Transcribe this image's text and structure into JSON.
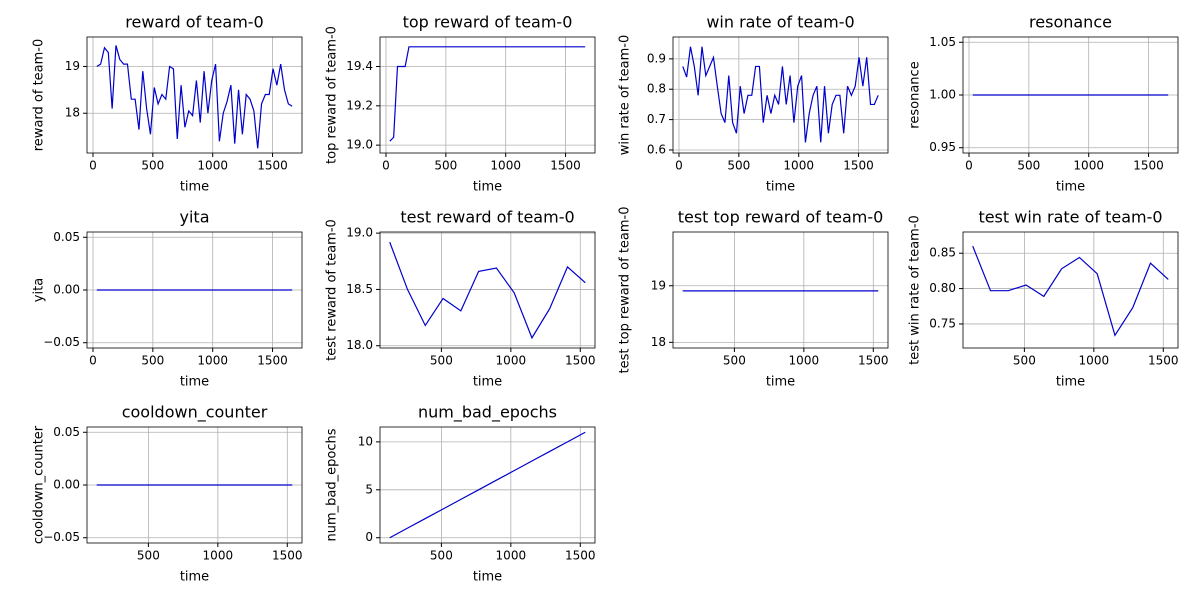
{
  "chart_data": [
    {
      "type": "line",
      "title": "reward of team-0",
      "xlabel": "time",
      "ylabel": "reward of team-0",
      "color": "#0000cc",
      "grid": true,
      "x": [
        32,
        64,
        96,
        128,
        160,
        192,
        224,
        256,
        288,
        320,
        352,
        384,
        416,
        448,
        480,
        512,
        544,
        576,
        608,
        640,
        672,
        704,
        736,
        768,
        800,
        832,
        864,
        896,
        928,
        960,
        992,
        1024,
        1056,
        1088,
        1120,
        1152,
        1184,
        1216,
        1248,
        1280,
        1312,
        1344,
        1376,
        1408,
        1440,
        1472,
        1504,
        1536,
        1568,
        1600,
        1632,
        1664
      ],
      "values": [
        19.0,
        19.05,
        19.4,
        19.3,
        18.1,
        19.45,
        19.15,
        19.05,
        19.05,
        18.3,
        18.3,
        17.65,
        18.9,
        18.1,
        17.55,
        18.55,
        18.2,
        18.4,
        18.3,
        19.0,
        18.95,
        17.45,
        18.6,
        17.7,
        18.05,
        17.95,
        18.7,
        17.8,
        18.9,
        18.0,
        18.7,
        19.05,
        17.4,
        18.0,
        18.25,
        18.6,
        17.35,
        18.5,
        17.55,
        18.4,
        18.3,
        18.05,
        17.25,
        18.2,
        18.4,
        18.4,
        18.95,
        18.6,
        19.05,
        18.5,
        18.2,
        18.15
      ],
      "xlim": [
        -50,
        1746
      ],
      "ylim": [
        17.15,
        19.63
      ],
      "xticks": [
        0,
        500,
        1000,
        1500
      ],
      "yticks": [
        18,
        19
      ]
    },
    {
      "type": "line",
      "title": "top reward of team-0",
      "xlabel": "time",
      "ylabel": "top reward of team-0",
      "color": "#0000cc",
      "grid": true,
      "x": [
        32,
        64,
        96,
        128,
        160,
        192,
        224,
        256,
        288,
        320,
        352,
        384,
        416,
        448,
        480,
        512,
        544,
        576,
        608,
        640,
        672,
        704,
        736,
        768,
        800,
        832,
        864,
        896,
        928,
        960,
        992,
        1024,
        1056,
        1088,
        1120,
        1152,
        1184,
        1216,
        1248,
        1280,
        1312,
        1344,
        1376,
        1408,
        1440,
        1472,
        1504,
        1536,
        1568,
        1600,
        1632,
        1664
      ],
      "values": [
        19.02,
        19.04,
        19.4,
        19.4,
        19.4,
        19.5,
        19.5,
        19.5,
        19.5,
        19.5,
        19.5,
        19.5,
        19.5,
        19.5,
        19.5,
        19.5,
        19.5,
        19.5,
        19.5,
        19.5,
        19.5,
        19.5,
        19.5,
        19.5,
        19.5,
        19.5,
        19.5,
        19.5,
        19.5,
        19.5,
        19.5,
        19.5,
        19.5,
        19.5,
        19.5,
        19.5,
        19.5,
        19.5,
        19.5,
        19.5,
        19.5,
        19.5,
        19.5,
        19.5,
        19.5,
        19.5,
        19.5,
        19.5,
        19.5,
        19.5,
        19.5,
        19.5
      ],
      "xlim": [
        -50,
        1746
      ],
      "ylim": [
        18.96,
        19.55
      ],
      "xticks": [
        0,
        500,
        1000,
        1500
      ],
      "yticks": [
        {
          "value": 19.0,
          "label": "19.0"
        },
        19.2,
        19.4
      ]
    },
    {
      "type": "line",
      "title": "win rate of team-0",
      "xlabel": "time",
      "ylabel": "win rate of team-0",
      "color": "#0000cc",
      "grid": true,
      "x": [
        32,
        64,
        96,
        128,
        160,
        192,
        224,
        256,
        288,
        320,
        352,
        384,
        416,
        448,
        480,
        512,
        544,
        576,
        608,
        640,
        672,
        704,
        736,
        768,
        800,
        832,
        864,
        896,
        928,
        960,
        992,
        1024,
        1056,
        1088,
        1120,
        1152,
        1184,
        1216,
        1248,
        1280,
        1312,
        1344,
        1376,
        1408,
        1440,
        1472,
        1504,
        1536,
        1568,
        1600,
        1632,
        1664
      ],
      "values": [
        0.875,
        0.84,
        0.94,
        0.875,
        0.78,
        0.94,
        0.845,
        0.875,
        0.905,
        0.81,
        0.72,
        0.69,
        0.845,
        0.69,
        0.655,
        0.81,
        0.72,
        0.78,
        0.78,
        0.875,
        0.875,
        0.69,
        0.78,
        0.72,
        0.78,
        0.75,
        0.875,
        0.75,
        0.845,
        0.69,
        0.81,
        0.845,
        0.625,
        0.72,
        0.78,
        0.81,
        0.625,
        0.81,
        0.655,
        0.75,
        0.78,
        0.78,
        0.655,
        0.81,
        0.78,
        0.81,
        0.905,
        0.81,
        0.905,
        0.75,
        0.75,
        0.78
      ],
      "xlim": [
        -50,
        1746
      ],
      "ylim": [
        0.59,
        0.972
      ],
      "xticks": [
        0,
        500,
        1000,
        1500
      ],
      "yticks": [
        0.6,
        0.7,
        0.8,
        0.9
      ]
    },
    {
      "type": "line",
      "title": "resonance",
      "xlabel": "time",
      "ylabel": "resonance",
      "color": "#0000cc",
      "grid": true,
      "x": [
        32,
        64,
        96,
        128,
        160,
        192,
        224,
        256,
        288,
        320,
        352,
        384,
        416,
        448,
        480,
        512,
        544,
        576,
        608,
        640,
        672,
        704,
        736,
        768,
        800,
        832,
        864,
        896,
        928,
        960,
        992,
        1024,
        1056,
        1088,
        1120,
        1152,
        1184,
        1216,
        1248,
        1280,
        1312,
        1344,
        1376,
        1408,
        1440,
        1472,
        1504,
        1536,
        1568,
        1600,
        1632,
        1664
      ],
      "values": [
        1,
        1,
        1,
        1,
        1,
        1,
        1,
        1,
        1,
        1,
        1,
        1,
        1,
        1,
        1,
        1,
        1,
        1,
        1,
        1,
        1,
        1,
        1,
        1,
        1,
        1,
        1,
        1,
        1,
        1,
        1,
        1,
        1,
        1,
        1,
        1,
        1,
        1,
        1,
        1,
        1,
        1,
        1,
        1,
        1,
        1,
        1,
        1,
        1,
        1,
        1,
        1
      ],
      "xlim": [
        -50,
        1746
      ],
      "ylim": [
        0.945,
        1.055
      ],
      "xticks": [
        0,
        500,
        1000,
        1500
      ],
      "yticks": [
        {
          "value": 0.95,
          "label": "0.95"
        },
        {
          "value": 1.0,
          "label": "1.00"
        },
        {
          "value": 1.05,
          "label": "1.05"
        }
      ]
    },
    {
      "type": "line",
      "title": "yita",
      "xlabel": "time",
      "ylabel": "yita",
      "color": "#0000cc",
      "grid": true,
      "x": [
        32,
        64,
        96,
        128,
        160,
        192,
        224,
        256,
        288,
        320,
        352,
        384,
        416,
        448,
        480,
        512,
        544,
        576,
        608,
        640,
        672,
        704,
        736,
        768,
        800,
        832,
        864,
        896,
        928,
        960,
        992,
        1024,
        1056,
        1088,
        1120,
        1152,
        1184,
        1216,
        1248,
        1280,
        1312,
        1344,
        1376,
        1408,
        1440,
        1472,
        1504,
        1536,
        1568,
        1600,
        1632,
        1664
      ],
      "values": [
        0,
        0,
        0,
        0,
        0,
        0,
        0,
        0,
        0,
        0,
        0,
        0,
        0,
        0,
        0,
        0,
        0,
        0,
        0,
        0,
        0,
        0,
        0,
        0,
        0,
        0,
        0,
        0,
        0,
        0,
        0,
        0,
        0,
        0,
        0,
        0,
        0,
        0,
        0,
        0,
        0,
        0,
        0,
        0,
        0,
        0,
        0,
        0,
        0,
        0,
        0,
        0
      ],
      "xlim": [
        -50,
        1746
      ],
      "ylim": [
        -0.055,
        0.055
      ],
      "xticks": [
        0,
        500,
        1000,
        1500
      ],
      "yticks": [
        {
          "value": -0.05,
          "label": "−0.05"
        },
        {
          "value": 0,
          "label": "0.00"
        },
        0.05
      ]
    },
    {
      "type": "line",
      "title": "test reward of team-0",
      "xlabel": "time",
      "ylabel": "test reward of team-0",
      "color": "#0000cc",
      "grid": true,
      "x": [
        128,
        256,
        384,
        512,
        640,
        768,
        896,
        1024,
        1152,
        1280,
        1408,
        1536
      ],
      "values": [
        18.92,
        18.5,
        18.18,
        18.42,
        18.31,
        18.66,
        18.69,
        18.47,
        18.07,
        18.33,
        18.7,
        18.56
      ],
      "xlim": [
        58,
        1606
      ],
      "ylim": [
        17.98,
        19.01
      ],
      "xticks": [
        500,
        1000,
        1500
      ],
      "yticks": [
        {
          "value": 18.0,
          "label": "18.0"
        },
        18.5,
        {
          "value": 19.0,
          "label": "19.0"
        }
      ]
    },
    {
      "type": "line",
      "title": "test top reward of team-0",
      "xlabel": "time",
      "ylabel": "test top reward of team-0",
      "color": "#0000cc",
      "grid": true,
      "x": [
        128,
        256,
        384,
        512,
        640,
        768,
        896,
        1024,
        1152,
        1280,
        1408,
        1536
      ],
      "values": [
        18.91,
        18.91,
        18.91,
        18.91,
        18.91,
        18.91,
        18.91,
        18.91,
        18.91,
        18.91,
        18.91,
        18.91
      ],
      "xlim": [
        58,
        1606
      ],
      "ylim": [
        17.9,
        19.95
      ],
      "xticks": [
        500,
        1000,
        1500
      ],
      "yticks": [
        18,
        19
      ]
    },
    {
      "type": "line",
      "title": "test win rate of team-0",
      "xlabel": "time",
      "ylabel": "test win rate of team-0",
      "color": "#0000cc",
      "grid": true,
      "x": [
        128,
        256,
        384,
        512,
        640,
        768,
        896,
        1024,
        1152,
        1280,
        1408,
        1536
      ],
      "values": [
        0.86,
        0.797,
        0.797,
        0.805,
        0.789,
        0.828,
        0.844,
        0.821,
        0.734,
        0.773,
        0.836,
        0.813
      ],
      "xlim": [
        58,
        1606
      ],
      "ylim": [
        0.716,
        0.88
      ],
      "xticks": [
        500,
        1000,
        1500
      ],
      "yticks": [
        0.75,
        {
          "value": 0.8,
          "label": "0.80"
        },
        0.85
      ]
    },
    {
      "type": "line",
      "title": "cooldown_counter",
      "xlabel": "time",
      "ylabel": "cooldown_counter",
      "color": "#0000cc",
      "grid": true,
      "x": [
        128,
        256,
        384,
        512,
        640,
        768,
        896,
        1024,
        1152,
        1280,
        1408,
        1536
      ],
      "values": [
        0,
        0,
        0,
        0,
        0,
        0,
        0,
        0,
        0,
        0,
        0,
        0
      ],
      "xlim": [
        58,
        1606
      ],
      "ylim": [
        -0.055,
        0.055
      ],
      "xticks": [
        500,
        1000,
        1500
      ],
      "yticks": [
        {
          "value": -0.05,
          "label": "−0.05"
        },
        {
          "value": 0,
          "label": "0.00"
        },
        0.05
      ]
    },
    {
      "type": "line",
      "title": "num_bad_epochs",
      "xlabel": "time",
      "ylabel": "num_bad_epochs",
      "color": "#0000cc",
      "grid": true,
      "x": [
        128,
        256,
        384,
        512,
        640,
        768,
        896,
        1024,
        1152,
        1280,
        1408,
        1536
      ],
      "values": [
        0,
        1,
        2,
        3,
        4,
        5,
        6,
        7,
        8,
        9,
        10,
        11
      ],
      "xlim": [
        58,
        1606
      ],
      "ylim": [
        -0.55,
        11.55
      ],
      "xticks": [
        500,
        1000,
        1500
      ],
      "yticks": [
        0,
        5,
        10
      ]
    }
  ]
}
